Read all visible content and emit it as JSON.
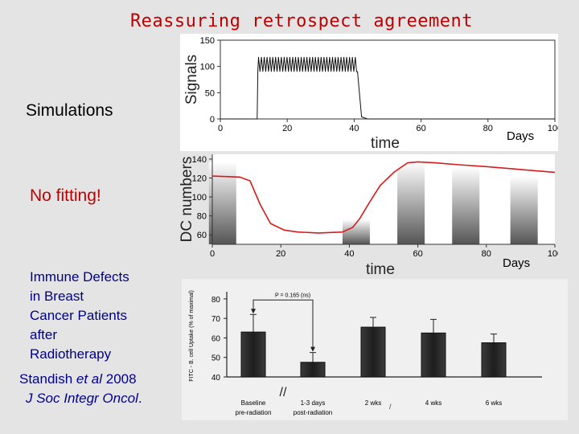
{
  "slide": {
    "title": "Reassuring retrospect agreement",
    "left_labels": {
      "simulations": "Simulations",
      "no_fitting": "No fitting!",
      "immune_defects": [
        "Immune Defects",
        "in Breast",
        "Cancer Patients",
        "after",
        "Radiotherapy"
      ],
      "citation_author": "Standish ",
      "citation_etal": "et al",
      "citation_year": " 2008",
      "citation_journal": "J Soc Integr Oncol",
      "citation_dot": "."
    },
    "colors": {
      "title": "#c00000",
      "no_fitting": "#c00000",
      "body_text": "#00008b",
      "sim_curve": "#d81b1b"
    }
  },
  "chart_data": [
    {
      "type": "line",
      "xlabel": "time",
      "ylabel": "Signals",
      "x_unit_label": "Days",
      "xlim": [
        0,
        100
      ],
      "ylim": [
        0,
        150
      ],
      "xticks": [
        0,
        20,
        40,
        60,
        80,
        100
      ],
      "yticks": [
        0,
        50,
        100,
        150
      ],
      "series": [
        {
          "pulse": {
            "on_start": 11,
            "on_end": 41,
            "period": 0.85,
            "low": 90,
            "high": 118,
            "baseline": 0
          }
        }
      ]
    },
    {
      "type": "bar+line",
      "xlabel": "time",
      "ylabel": "DC numbers",
      "x_unit_label": "Days",
      "xlim": [
        0,
        100
      ],
      "ylim": [
        50,
        145
      ],
      "xticks": [
        0,
        20,
        40,
        60,
        80,
        100
      ],
      "yticks": [
        60,
        80,
        100,
        120,
        140
      ],
      "bars": [
        {
          "x": 3,
          "value": 137
        },
        {
          "x": 42,
          "value": 76
        },
        {
          "x": 58,
          "value": 137
        },
        {
          "x": 74,
          "value": 132
        },
        {
          "x": 91,
          "value": 122
        }
      ],
      "series": [
        {
          "points": [
            [
              0,
              122
            ],
            [
              8,
              121
            ],
            [
              11,
              117
            ],
            [
              14,
              92
            ],
            [
              17,
              72
            ],
            [
              21,
              65
            ],
            [
              25,
              63
            ],
            [
              31,
              62
            ],
            [
              38,
              63
            ],
            [
              41,
              68
            ],
            [
              43,
              77
            ],
            [
              46,
              95
            ],
            [
              49,
              112
            ],
            [
              53,
              126
            ],
            [
              57,
              136
            ],
            [
              60,
              137
            ],
            [
              65,
              136
            ],
            [
              72,
              134
            ],
            [
              80,
              132
            ],
            [
              90,
              129
            ],
            [
              100,
              126
            ]
          ]
        }
      ]
    },
    {
      "type": "bar",
      "ylabel": "FITC - B. cell Uptake (% of maximal)",
      "ylim": [
        40,
        82
      ],
      "yticks": [
        40,
        50,
        60,
        70,
        80
      ],
      "annotation": "P = 0.165 (ns)",
      "categories": [
        [
          "Baseline",
          "pre-radiation"
        ],
        [
          "1-3 days",
          "post-radiation"
        ],
        [
          "2 wks"
        ],
        [
          "4 wks"
        ],
        [
          "6 wks"
        ]
      ],
      "values": [
        63,
        47.5,
        65.5,
        62.5,
        57.5
      ],
      "errors": [
        9,
        5,
        5,
        7,
        4.5
      ],
      "break_mark": "//",
      "stray_mark": "/"
    }
  ]
}
